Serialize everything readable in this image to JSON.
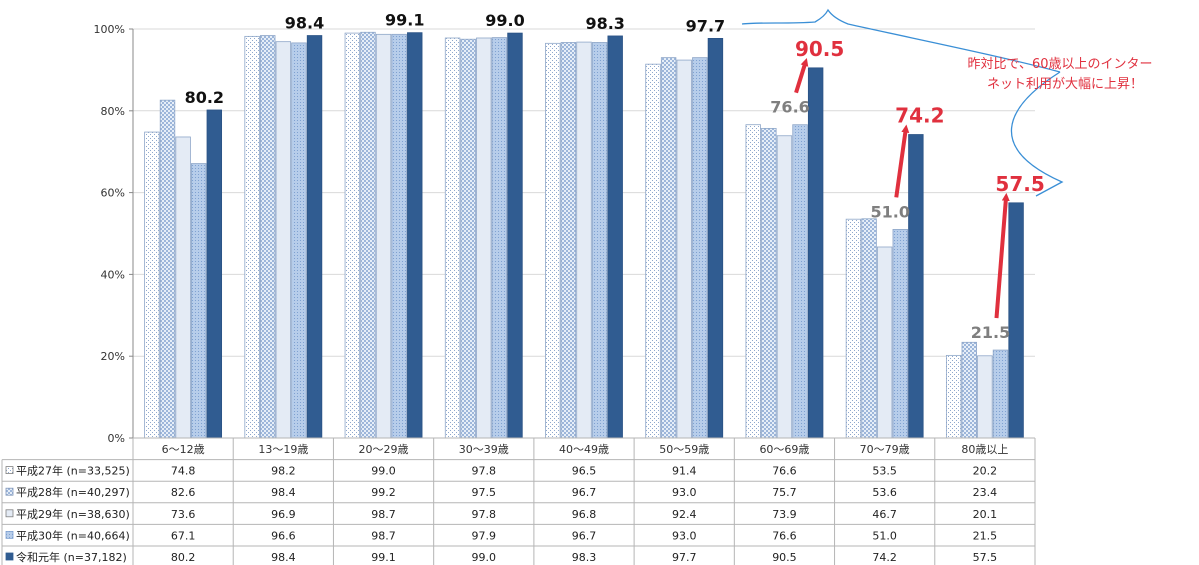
{
  "chart_data": {
    "type": "bar",
    "categories": [
      "6〜12歳",
      "13〜19歳",
      "20〜29歳",
      "30〜39歳",
      "40〜49歳",
      "50〜59歳",
      "60〜69歳",
      "70〜79歳",
      "80歳以上"
    ],
    "series": [
      {
        "name": "平成27年 (n=33,525)",
        "values": [
          74.8,
          98.2,
          99.0,
          97.8,
          96.5,
          91.4,
          76.6,
          53.5,
          20.2
        ],
        "pattern": "dots",
        "color": "#ffffff"
      },
      {
        "name": "平成28年 (n=40,297)",
        "values": [
          82.6,
          98.4,
          99.2,
          97.5,
          96.7,
          93.0,
          75.7,
          53.6,
          23.4
        ],
        "pattern": "checker",
        "color": "#dce6f3"
      },
      {
        "name": "平成29年 (n=38,630)",
        "values": [
          73.6,
          96.9,
          98.7,
          97.8,
          96.8,
          92.4,
          73.9,
          46.7,
          20.1
        ],
        "pattern": "none",
        "color": "#e4ebf5"
      },
      {
        "name": "平成30年 (n=40,664)",
        "values": [
          67.1,
          96.6,
          98.7,
          97.9,
          96.7,
          93.0,
          76.6,
          51.0,
          21.5
        ],
        "pattern": "fine",
        "color": "#a9c4e6"
      },
      {
        "name": "令和元年 (n=37,182)",
        "values": [
          80.2,
          98.4,
          99.1,
          99.0,
          98.3,
          97.7,
          90.5,
          74.2,
          57.5
        ],
        "pattern": "none",
        "color": "#305c91"
      }
    ],
    "ylim": [
      0,
      100
    ],
    "yticks": [
      "0%",
      "20%",
      "40%",
      "60%",
      "80%",
      "100%"
    ],
    "grid": true,
    "top_labels": [
      "80.2",
      "98.4",
      "99.1",
      "99.0",
      "98.3",
      "97.7",
      "90.5",
      "74.2",
      "57.5"
    ],
    "comparison_labels": [
      {
        "category_index": 6,
        "prev": "76.6",
        "curr": "90.5"
      },
      {
        "category_index": 7,
        "prev": "51.0",
        "curr": "74.2"
      },
      {
        "category_index": 8,
        "prev": "21.5",
        "curr": "57.5"
      }
    ],
    "annotation_lines": [
      "昨対比で、60歳以上のインター",
      "ネット利用が大幅に上昇！"
    ],
    "highlight_color": "#e0303e",
    "bracket_color": "#3a8fd6",
    "table": {
      "rows": [
        {
          "label": "平成27年 (n=33,525)",
          "values": [
            "74.8",
            "98.2",
            "99.0",
            "97.8",
            "96.5",
            "91.4",
            "76.6",
            "53.5",
            "20.2"
          ]
        },
        {
          "label": "平成28年 (n=40,297)",
          "values": [
            "82.6",
            "98.4",
            "99.2",
            "97.5",
            "96.7",
            "93.0",
            "75.7",
            "53.6",
            "23.4"
          ]
        },
        {
          "label": "平成29年 (n=38,630)",
          "values": [
            "73.6",
            "96.9",
            "98.7",
            "97.8",
            "96.8",
            "92.4",
            "73.9",
            "46.7",
            "20.1"
          ]
        },
        {
          "label": "平成30年 (n=40,664)",
          "values": [
            "67.1",
            "96.6",
            "98.7",
            "97.9",
            "96.7",
            "93.0",
            "76.6",
            "51.0",
            "21.5"
          ]
        },
        {
          "label": "令和元年 (n=37,182)",
          "values": [
            "80.2",
            "98.4",
            "99.1",
            "99.0",
            "98.3",
            "97.7",
            "90.5",
            "74.2",
            "57.5"
          ]
        }
      ]
    }
  }
}
